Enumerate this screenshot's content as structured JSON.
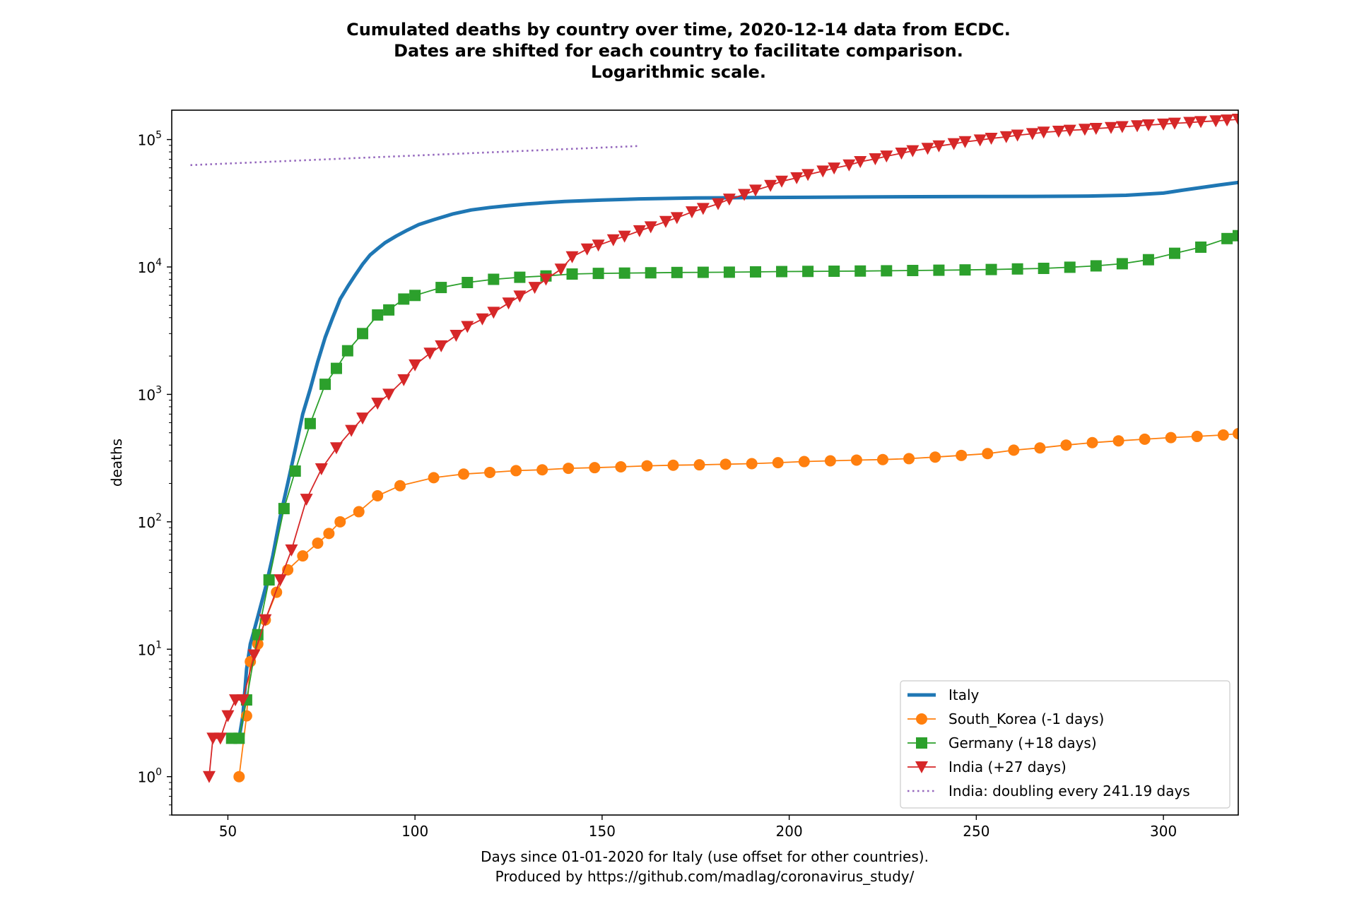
{
  "chart_data": {
    "type": "line",
    "title_lines": [
      "Cumulated deaths by country over time, 2020-12-14 data from ECDC.",
      "Dates are shifted for each country to facilitate comparison.",
      "Logarithmic scale."
    ],
    "xlabel_lines": [
      "Days since 01-01-2020 for Italy (use offset for other countries).",
      "Produced by https://github.com/madlag/coronavirus_study/"
    ],
    "ylabel": "deaths",
    "xlim": [
      35,
      320
    ],
    "ylim": [
      0.5,
      170000
    ],
    "yscale": "log",
    "x_ticks": [
      50,
      100,
      150,
      200,
      250,
      300
    ],
    "y_ticks": [
      1,
      10,
      100,
      1000,
      10000,
      100000
    ],
    "y_tick_labels": [
      {
        "base": "10",
        "exp": "0"
      },
      {
        "base": "10",
        "exp": "1"
      },
      {
        "base": "10",
        "exp": "2"
      },
      {
        "base": "10",
        "exp": "3"
      },
      {
        "base": "10",
        "exp": "4"
      },
      {
        "base": "10",
        "exp": "5"
      }
    ],
    "legend_position": "lower-right",
    "series": [
      {
        "name": "Italy",
        "color": "#1f77b4",
        "marker": "none",
        "line_style": "solid-thick",
        "x": [
          53,
          54,
          55,
          56,
          57,
          58,
          60,
          62,
          64,
          66,
          68,
          70,
          72,
          74,
          76,
          78,
          80,
          82,
          84,
          86,
          88,
          90,
          92,
          95,
          98,
          101,
          105,
          110,
          115,
          120,
          125,
          130,
          135,
          140,
          150,
          160,
          175,
          190,
          205,
          220,
          235,
          250,
          265,
          280,
          290,
          300,
          305,
          310,
          315,
          320
        ],
        "y": [
          2,
          3,
          7,
          11,
          14,
          18,
          30,
          54,
          110,
          200,
          370,
          700,
          1100,
          1800,
          2800,
          4000,
          5600,
          7000,
          8600,
          10500,
          12400,
          13900,
          15500,
          17500,
          19500,
          21500,
          23500,
          26000,
          28000,
          29300,
          30300,
          31200,
          32000,
          32700,
          33500,
          34200,
          34800,
          35000,
          35200,
          35400,
          35600,
          35700,
          35800,
          36000,
          36500,
          38000,
          40000,
          42000,
          44000,
          46000
        ]
      },
      {
        "name": "South_Korea (-1 days)",
        "color": "#ff7f0e",
        "marker": "circle",
        "line_style": "solid",
        "x": [
          53,
          55,
          56,
          58,
          60,
          63,
          66,
          70,
          74,
          77,
          80,
          85,
          90,
          96,
          105,
          113,
          120,
          127,
          134,
          141,
          148,
          155,
          162,
          169,
          176,
          183,
          190,
          197,
          204,
          211,
          218,
          225,
          232,
          239,
          246,
          253,
          260,
          267,
          274,
          281,
          288,
          295,
          302,
          309,
          316,
          320
        ],
        "y": [
          1,
          3,
          8,
          11,
          17,
          28,
          42,
          54,
          68,
          81,
          100,
          120,
          160,
          192,
          222,
          237,
          244,
          252,
          256,
          263,
          266,
          270,
          275,
          278,
          280,
          283,
          286,
          291,
          297,
          301,
          305,
          308,
          313,
          322,
          332,
          343,
          365,
          380,
          400,
          418,
          432,
          445,
          458,
          468,
          480,
          492
        ]
      },
      {
        "name": "Germany (+18 days)",
        "color": "#2ca02c",
        "marker": "square",
        "line_style": "solid",
        "x": [
          51,
          53,
          55,
          58,
          61,
          65,
          68,
          72,
          76,
          79,
          82,
          86,
          90,
          93,
          97,
          100,
          107,
          114,
          121,
          128,
          135,
          142,
          149,
          156,
          163,
          170,
          177,
          184,
          191,
          198,
          205,
          212,
          219,
          226,
          233,
          240,
          247,
          254,
          261,
          268,
          275,
          282,
          289,
          296,
          303,
          310,
          317,
          320
        ],
        "y": [
          2,
          2,
          4,
          13,
          35,
          127,
          250,
          590,
          1200,
          1600,
          2200,
          3000,
          4200,
          4600,
          5600,
          5980,
          6900,
          7550,
          8000,
          8300,
          8500,
          8800,
          8900,
          8950,
          9000,
          9050,
          9080,
          9100,
          9150,
          9200,
          9230,
          9260,
          9290,
          9330,
          9380,
          9430,
          9480,
          9550,
          9650,
          9750,
          9950,
          10200,
          10600,
          11400,
          12800,
          14300,
          16700,
          17600
        ]
      },
      {
        "name": "India (+27 days)",
        "color": "#d62728",
        "marker": "triangle-down",
        "line_style": "solid",
        "x": [
          45,
          46,
          48,
          50,
          52,
          54,
          57,
          60,
          64,
          67,
          71,
          75,
          79,
          83,
          86,
          90,
          93,
          97,
          100,
          104,
          107,
          111,
          114,
          118,
          121,
          125,
          128,
          132,
          135,
          139,
          142,
          146,
          149,
          153,
          156,
          160,
          163,
          167,
          170,
          174,
          177,
          181,
          184,
          188,
          191,
          195,
          198,
          202,
          205,
          209,
          212,
          216,
          219,
          223,
          226,
          230,
          233,
          237,
          240,
          244,
          247,
          251,
          254,
          258,
          261,
          265,
          268,
          272,
          275,
          279,
          282,
          286,
          289,
          293,
          296,
          300,
          303,
          307,
          310,
          314,
          317,
          320
        ],
        "y": [
          1,
          2,
          2,
          3,
          4,
          4,
          9,
          17,
          35,
          60,
          150,
          260,
          380,
          520,
          650,
          850,
          1000,
          1300,
          1700,
          2100,
          2400,
          2900,
          3400,
          3900,
          4400,
          5200,
          5900,
          6900,
          8000,
          9600,
          12000,
          13800,
          14800,
          16300,
          17400,
          19200,
          20600,
          22700,
          24300,
          27000,
          28700,
          31300,
          34000,
          37000,
          40000,
          43500,
          47000,
          50000,
          53000,
          56500,
          59600,
          63000,
          67000,
          70500,
          74000,
          78000,
          81500,
          85000,
          89000,
          92500,
          96000,
          99000,
          102000,
          105000,
          108000,
          111000,
          114000,
          116000,
          118000,
          120000,
          122000,
          124000,
          126000,
          128000,
          130000,
          132000,
          134000,
          136000,
          138000,
          140000,
          142000,
          144000
        ]
      },
      {
        "name": "India: doubling every 241.19 days",
        "color": "#9467bd",
        "marker": "none",
        "line_style": "dotted",
        "x": [
          40,
          160
        ],
        "y": [
          63000,
          89000
        ]
      }
    ]
  }
}
